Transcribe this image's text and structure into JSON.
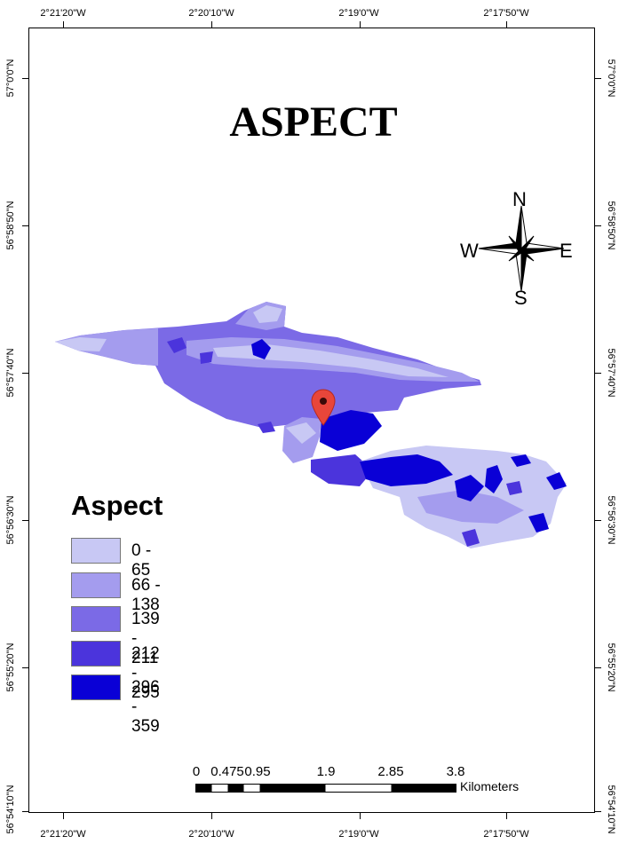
{
  "map": {
    "title": "ASPECT",
    "graticule": {
      "top_longitudes": [
        "2°21'20\"W",
        "2°20'10\"W",
        "2°19'0\"W",
        "2°17'50\"W"
      ],
      "bottom_longitudes": [
        "2°21'20\"W",
        "2°20'10\"W",
        "2°19'0\"W",
        "2°17'50\"W"
      ],
      "left_latitudes": [
        "57°0'0\"N",
        "56°58'50\"N",
        "56°57'40\"N",
        "56°56'30\"N",
        "56°55'20\"N",
        "56°54'10\"N"
      ],
      "right_latitudes": [
        "57°0'0\"N",
        "56°58'50\"N",
        "56°57'40\"N",
        "56°56'30\"N",
        "56°55'20\"N",
        "56°54'10\"N"
      ]
    },
    "north_arrow": {
      "n": "N",
      "s": "S",
      "e": "E",
      "w": "W"
    },
    "marker": {
      "icon": "map-pin-icon",
      "color": "#e8463a"
    }
  },
  "legend": {
    "title": "Aspect",
    "items": [
      {
        "label": "0 - 65",
        "color": "#c8c8f4"
      },
      {
        "label": "66 - 138",
        "color": "#a49cee"
      },
      {
        "label": "139 - 211",
        "color": "#7b6ae6"
      },
      {
        "label": "212 - 295",
        "color": "#4b34dc"
      },
      {
        "label": "296 - 359",
        "color": "#0a00d6"
      }
    ]
  },
  "scale_bar": {
    "labels": [
      "0",
      "0.475",
      "0.95",
      "1.9",
      "2.85",
      "3.8"
    ],
    "units": "Kilometers"
  }
}
